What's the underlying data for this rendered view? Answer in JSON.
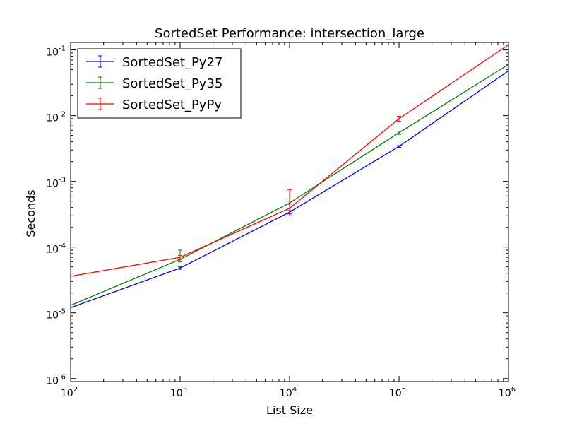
{
  "chart_data": {
    "type": "line",
    "title": "SortedSet Performance: intersection_large",
    "xlabel": "List Size",
    "ylabel": "Seconds",
    "xscale": "log",
    "yscale": "log",
    "xlim": [
      100,
      1000000
    ],
    "ylim": [
      9e-07,
      0.13
    ],
    "x_ticks": [
      {
        "value": 100,
        "base": "10",
        "exp": "2"
      },
      {
        "value": 1000,
        "base": "10",
        "exp": "3"
      },
      {
        "value": 10000,
        "base": "10",
        "exp": "4"
      },
      {
        "value": 100000,
        "base": "10",
        "exp": "5"
      },
      {
        "value": 1000000,
        "base": "10",
        "exp": "6"
      }
    ],
    "y_ticks": [
      {
        "value": 1e-06,
        "base": "10",
        "exp": "-6"
      },
      {
        "value": 1e-05,
        "base": "10",
        "exp": "-5"
      },
      {
        "value": 0.0001,
        "base": "10",
        "exp": "-4"
      },
      {
        "value": 0.001,
        "base": "10",
        "exp": "-3"
      },
      {
        "value": 0.01,
        "base": "10",
        "exp": "-2"
      },
      {
        "value": 0.1,
        "base": "10",
        "exp": "-1"
      }
    ],
    "legend_position": "top-left",
    "grid": false,
    "series": [
      {
        "name": "SortedSet_Py27",
        "color": "#0000ff",
        "x": [
          100,
          1000,
          10000,
          100000,
          1000000
        ],
        "y": [
          1.2e-05,
          4.8e-05,
          0.00034,
          0.0034,
          0.048
        ],
        "err_low": [
          1.15e-05,
          4.6e-05,
          0.00032,
          0.0033,
          0.047
        ],
        "err_high": [
          1.25e-05,
          5e-05,
          0.00036,
          0.0035,
          0.049
        ]
      },
      {
        "name": "SortedSet_Py35",
        "color": "#008000",
        "x": [
          100,
          1000,
          10000,
          100000,
          1000000
        ],
        "y": [
          1.3e-05,
          6.5e-05,
          0.00047,
          0.0055,
          0.06
        ],
        "err_low": [
          1.25e-05,
          6e-05,
          0.00045,
          0.0052,
          0.058
        ],
        "err_high": [
          1.35e-05,
          9e-05,
          0.0005,
          0.0058,
          0.062
        ]
      },
      {
        "name": "SortedSet_PyPy",
        "color": "#ff0000",
        "x": [
          100,
          1000,
          10000,
          100000,
          1000000
        ],
        "y": [
          3.6e-05,
          7e-05,
          0.00039,
          0.009,
          0.12
        ],
        "err_low": [
          3.5e-05,
          6.5e-05,
          0.0003,
          0.0082,
          0.118
        ],
        "err_high": [
          3.7e-05,
          7.5e-05,
          0.00075,
          0.0098,
          0.122
        ]
      }
    ]
  }
}
